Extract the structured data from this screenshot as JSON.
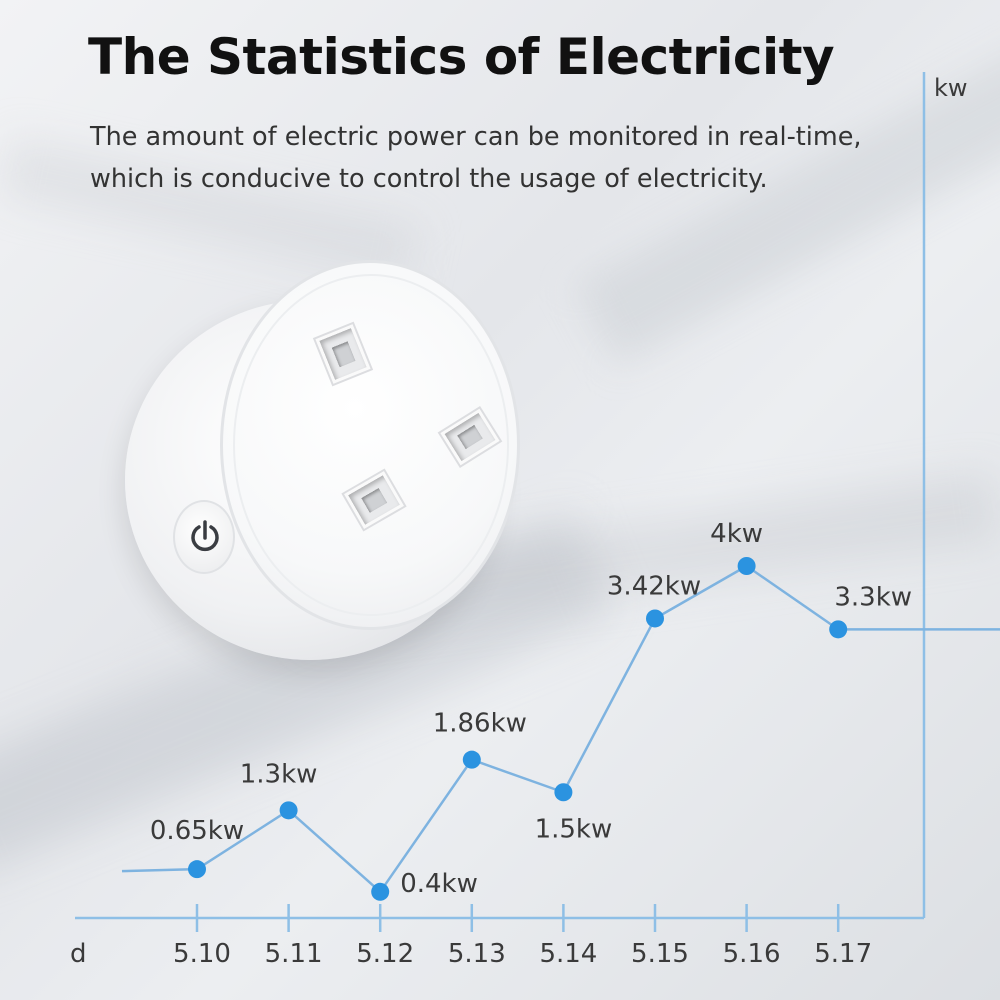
{
  "header": {
    "title": "The Statistics of Electricity",
    "subtitle": "The amount of electric power can be monitored in real-time, which is conducive to control the usage of electricity."
  },
  "colors": {
    "line": "#7eb3e0",
    "point": "#2b93e0",
    "axis": "#8ebfe6",
    "text": "#333333"
  },
  "icons": {
    "plug": "smart-plug-icon",
    "power": "power-icon"
  },
  "chart_data": {
    "type": "line",
    "x_axis_label": "d",
    "y_axis_label": "kw",
    "categories": [
      "5.10",
      "5.11",
      "5.12",
      "5.13",
      "5.14",
      "5.15",
      "5.16",
      "5.17"
    ],
    "values": [
      0.65,
      1.3,
      0.4,
      1.86,
      1.5,
      3.42,
      4,
      3.3
    ],
    "point_labels": [
      "0.65kw",
      "1.3kw",
      "0.4kw",
      "1.86kw",
      "1.5kw",
      "3.42kw",
      "4kw",
      "3.3kw"
    ],
    "ylim": [
      0,
      4
    ],
    "grid": false,
    "legend": "none"
  }
}
